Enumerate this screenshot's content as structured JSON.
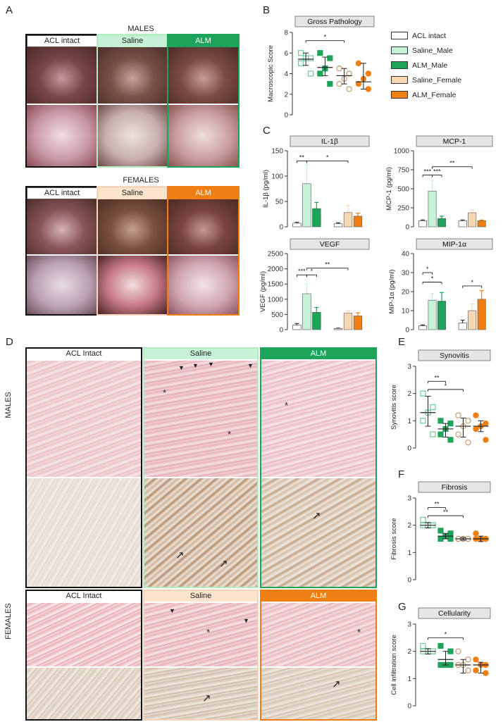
{
  "colors": {
    "acl": "#ffffff",
    "saline_male": "#c8f2d8",
    "alm_male": "#1ea45a",
    "saline_female": "#f8d8b4",
    "alm_female": "#f07f13",
    "male_light_border": "#b6ecc4",
    "female_light_border": "#f5d5bb"
  },
  "panel_letters": {
    "a": "A",
    "b": "B",
    "c": "C",
    "d": "D",
    "e": "E",
    "f": "F",
    "g": "G"
  },
  "panelA": {
    "males_title": "MALES",
    "females_title": "FEMALES",
    "male_cols": [
      "ACL intact",
      "Saline",
      "ALM"
    ],
    "female_cols": [
      "ACL intact",
      "Saline",
      "ALM"
    ]
  },
  "legend": [
    "ACL intact",
    "Saline_Male",
    "ALM_Male",
    "Saline_Female",
    "ALM_Female"
  ],
  "panelD": {
    "male_cols": [
      "ACL Intact",
      "Saline",
      "ALM"
    ],
    "female_cols": [
      "ACL Intact",
      "Saline",
      "ALM"
    ],
    "males_label": "MALES",
    "females_label": "FEMALES",
    "marks": {
      "arrowhead": "▼",
      "asterisk": "*",
      "arrow": "↗"
    }
  },
  "chart_data": [
    {
      "id": "gross",
      "type": "scatter",
      "title": "Gross Pathology",
      "ylabel": "Macroscopic Score",
      "ylim": [
        0,
        8
      ],
      "yticks": [
        0,
        2,
        4,
        6,
        8
      ],
      "groups": [
        {
          "name": "Saline_Male",
          "points": [
            6,
            5.5,
            5.5,
            5,
            4
          ],
          "median": 5.4,
          "err": [
            4.8,
            6
          ]
        },
        {
          "name": "ALM_Male",
          "points": [
            6,
            5.5,
            4.5,
            4,
            3
          ],
          "median": 4.6,
          "err": [
            3.8,
            5.6
          ]
        },
        {
          "name": "Saline_Female",
          "points": [
            4.5,
            4,
            3.5,
            3,
            2.5
          ],
          "median": 3.8,
          "err": [
            3,
            4.5
          ]
        },
        {
          "name": "ALM_Female",
          "points": [
            5,
            4,
            3.5,
            3,
            2.5
          ],
          "median": 3.2,
          "err": [
            2.5,
            5
          ]
        }
      ],
      "sig": [
        {
          "from": 0,
          "to": 2,
          "label": "*",
          "level": 7.2
        }
      ]
    },
    {
      "id": "il1b",
      "type": "bar",
      "title": "IL-1β",
      "ylabel": "IL-1β (pg/ml)",
      "ylim": [
        0,
        150
      ],
      "yticks": [
        0,
        50,
        100,
        150
      ],
      "groups": [
        {
          "name": "ACL_Male",
          "value": 7,
          "err": 2
        },
        {
          "name": "Saline_Male",
          "value": 85,
          "err": 37
        },
        {
          "name": "ALM_Male",
          "value": 36,
          "err": 12
        },
        {
          "name": "ACL_Female",
          "value": 6,
          "err": 2
        },
        {
          "name": "Saline_Female",
          "value": 28,
          "err": 14
        },
        {
          "name": "ALM_Female",
          "value": 21,
          "err": 6
        }
      ],
      "sig": [
        {
          "from": 0,
          "to": 1,
          "label": "**",
          "level": 130
        },
        {
          "from": 1,
          "to": 4,
          "label": "*",
          "level": 130
        }
      ]
    },
    {
      "id": "mcp1",
      "type": "bar",
      "title": "MCP-1",
      "ylabel": "MCP-1 (pg/ml)",
      "ylim": [
        0,
        1000
      ],
      "yticks": [
        0,
        250,
        500,
        750,
        1000
      ],
      "groups": [
        {
          "name": "ACL_Male",
          "value": 80,
          "err": 10
        },
        {
          "name": "Saline_Male",
          "value": 470,
          "err": 140
        },
        {
          "name": "ALM_Male",
          "value": 110,
          "err": 30
        },
        {
          "name": "ACL_Female",
          "value": 80,
          "err": 10
        },
        {
          "name": "Saline_Female",
          "value": 185,
          "err": 40
        },
        {
          "name": "ALM_Female",
          "value": 80,
          "err": 10
        }
      ],
      "sig": [
        {
          "from": 0,
          "to": 1,
          "label": "***",
          "level": 680
        },
        {
          "from": 1,
          "to": 2,
          "label": "***",
          "level": 680
        },
        {
          "from": 1,
          "to": 4,
          "label": "**",
          "level": 790
        }
      ]
    },
    {
      "id": "vegf",
      "type": "bar",
      "title": "VEGF",
      "ylabel": "VEGF (pg/ml)",
      "ylim": [
        0,
        2500
      ],
      "yticks": [
        0,
        500,
        1000,
        1500,
        2000,
        2500
      ],
      "groups": [
        {
          "name": "ACL_Male",
          "value": 150,
          "err": 50
        },
        {
          "name": "Saline_Male",
          "value": 1180,
          "err": 320
        },
        {
          "name": "ALM_Male",
          "value": 570,
          "err": 160
        },
        {
          "name": "ACL_Female",
          "value": 40,
          "err": 10
        },
        {
          "name": "Saline_Female",
          "value": 540,
          "err": 80
        },
        {
          "name": "ALM_Female",
          "value": 450,
          "err": 100
        }
      ],
      "sig": [
        {
          "from": 0,
          "to": 1,
          "label": "***",
          "level": 1800
        },
        {
          "from": 1,
          "to": 2,
          "label": "*",
          "level": 1800
        },
        {
          "from": 1,
          "to": 4,
          "label": "**",
          "level": 2020
        }
      ]
    },
    {
      "id": "mip1a",
      "type": "bar",
      "title": "MIP-1α",
      "ylabel": "MIP-1α (pg/ml)",
      "ylim": [
        0,
        40
      ],
      "yticks": [
        0,
        10,
        20,
        30,
        40
      ],
      "groups": [
        {
          "name": "ACL_Male",
          "value": 2,
          "err": 0.5
        },
        {
          "name": "Saline_Male",
          "value": 15.5,
          "err": 3.5
        },
        {
          "name": "ALM_Male",
          "value": 15,
          "err": 4.5
        },
        {
          "name": "ACL_Female",
          "value": 3.5,
          "err": 1.5
        },
        {
          "name": "Saline_Female",
          "value": 10,
          "err": 3.5
        },
        {
          "name": "ALM_Female",
          "value": 16,
          "err": 4.5
        }
      ],
      "sig": [
        {
          "from": 0,
          "to": 1,
          "label": "*",
          "level": 30
        },
        {
          "from": 0,
          "to": 2,
          "label": "*",
          "level": 25
        },
        {
          "from": 3,
          "to": 5,
          "label": "*",
          "level": 23
        }
      ]
    },
    {
      "id": "synovitis",
      "type": "scatter",
      "title": "Synovitis",
      "ylabel": "Synovitis score",
      "ylim": [
        0,
        3
      ],
      "yticks": [
        0,
        1,
        2,
        3
      ],
      "groups": [
        {
          "name": "Saline_Male",
          "points": [
            2,
            1.5,
            1.3,
            1,
            0.5
          ],
          "median": 1.3,
          "err": [
            0.8,
            1.9
          ]
        },
        {
          "name": "ALM_Male",
          "points": [
            1,
            0.9,
            0.7,
            0.5,
            0.3
          ],
          "median": 0.7,
          "err": [
            0.4,
            0.9
          ]
        },
        {
          "name": "Saline_Female",
          "points": [
            1.2,
            1,
            0.8,
            0.5,
            0.2
          ],
          "median": 0.8,
          "err": [
            0.4,
            1.1
          ]
        },
        {
          "name": "ALM_Female",
          "points": [
            1.2,
            0.9,
            0.8,
            0.7,
            0.3
          ],
          "median": 0.8,
          "err": [
            0.6,
            1
          ]
        }
      ],
      "sig": [
        {
          "from": 0,
          "to": 1,
          "label": "**",
          "level": 2.45
        },
        {
          "from": 0,
          "to": 2,
          "label": "*",
          "level": 2.15
        }
      ]
    },
    {
      "id": "fibrosis",
      "type": "scatter",
      "title": "Fibrosis",
      "ylabel": "Fibrosis score",
      "ylim": [
        0,
        3
      ],
      "yticks": [
        0,
        1,
        2,
        3
      ],
      "groups": [
        {
          "name": "Saline_Male",
          "points": [
            2.2,
            2,
            2,
            2,
            2
          ],
          "median": 2,
          "err": [
            1.9,
            2.1
          ]
        },
        {
          "name": "ALM_Male",
          "points": [
            1.8,
            1.7,
            1.6,
            1.5,
            1.5
          ],
          "median": 1.6,
          "err": [
            1.5,
            1.7
          ]
        },
        {
          "name": "Saline_Female",
          "points": [
            1.5,
            1.5,
            1.5,
            1.5,
            1.5
          ],
          "median": 1.5,
          "err": [
            1.45,
            1.55
          ]
        },
        {
          "name": "ALM_Female",
          "points": [
            1.7,
            1.5,
            1.5,
            1.5,
            1.5
          ],
          "median": 1.5,
          "err": [
            1.4,
            1.6
          ]
        }
      ],
      "sig": [
        {
          "from": 0,
          "to": 1,
          "label": "**",
          "level": 2.65
        },
        {
          "from": 0,
          "to": 2,
          "label": "**",
          "level": 2.35
        }
      ]
    },
    {
      "id": "cellularity",
      "type": "scatter",
      "title": "Cellularity",
      "ylabel": "Cell infiltration score",
      "ylim": [
        0,
        3
      ],
      "yticks": [
        0,
        1,
        2,
        3
      ],
      "groups": [
        {
          "name": "Saline_Male",
          "points": [
            2.2,
            2,
            2,
            2,
            2
          ],
          "median": 2,
          "err": [
            1.9,
            2.1
          ]
        },
        {
          "name": "ALM_Male",
          "points": [
            2.2,
            2,
            1.5,
            1.5,
            1.5
          ],
          "median": 1.7,
          "err": [
            1.5,
            2
          ]
        },
        {
          "name": "Saline_Female",
          "points": [
            2,
            1.7,
            1.5,
            1.5,
            1.3
          ],
          "median": 1.5,
          "err": [
            1.2,
            1.7
          ]
        },
        {
          "name": "ALM_Female",
          "points": [
            1.7,
            1.5,
            1.5,
            1.3,
            1.2
          ],
          "median": 1.5,
          "err": [
            1.2,
            1.6
          ]
        }
      ],
      "sig": [
        {
          "from": 0,
          "to": 2,
          "label": "*",
          "level": 2.5
        }
      ]
    }
  ]
}
